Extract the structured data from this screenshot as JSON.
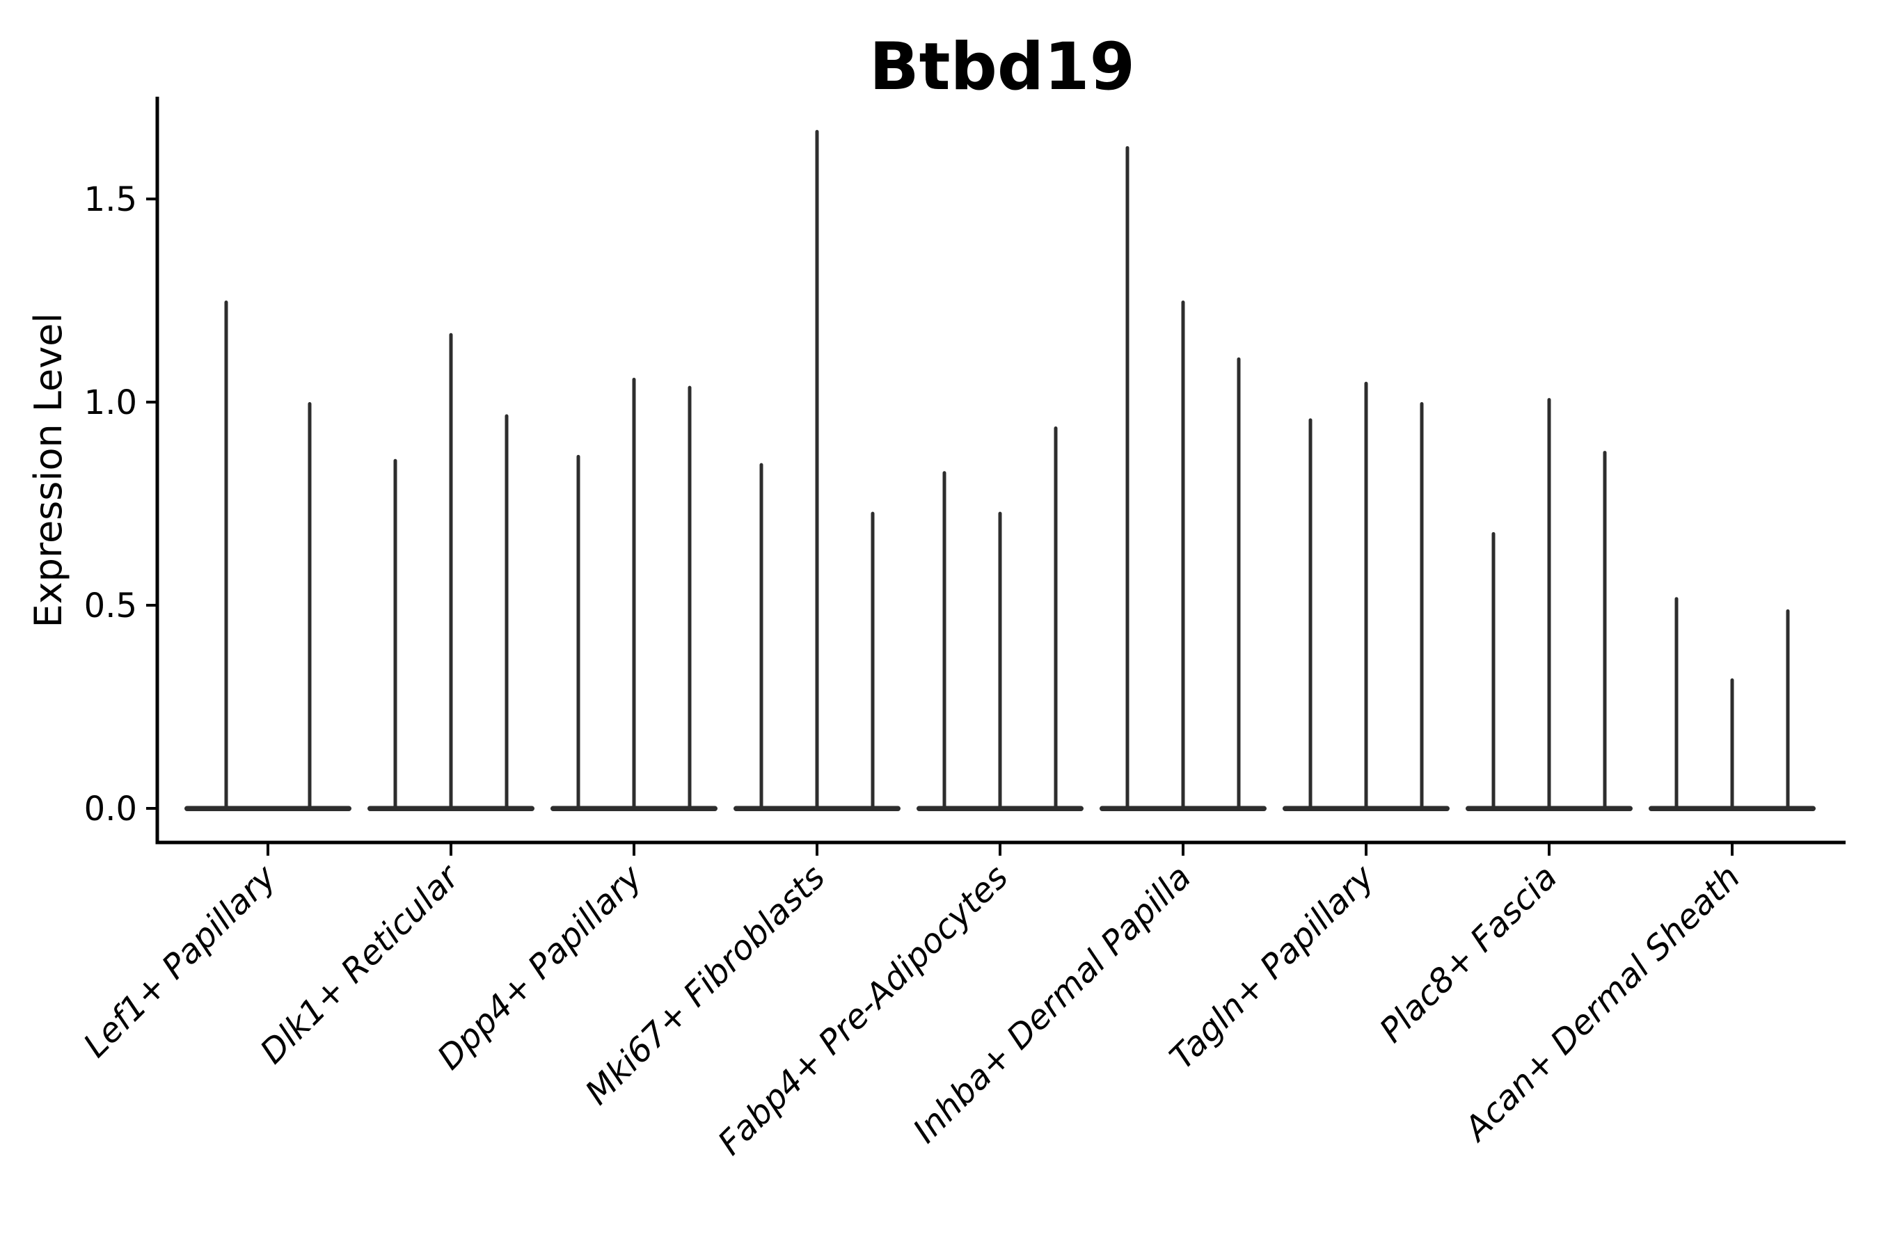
{
  "chart_data": {
    "type": "violin",
    "title": "Btbd19",
    "ylabel": "Expression Level",
    "xlabel": "",
    "ylim": [
      -0.08,
      1.76
    ],
    "grid": false,
    "legend": "none",
    "yticks": {
      "values": [
        0.0,
        0.5,
        1.0,
        1.5
      ],
      "labels": [
        "0.0",
        "0.5",
        "1.0",
        "1.5"
      ]
    },
    "colors": {
      "violin": "#2d2d2d",
      "axis": "#000000",
      "text": "#000000",
      "background": "#ffffff"
    },
    "categories": [
      {
        "label": "Lef1+ Papillary",
        "violin_max_values": [
          1.25,
          1.0
        ]
      },
      {
        "label": "Dlk1+ Reticular",
        "violin_max_values": [
          0.86,
          1.17,
          0.97
        ]
      },
      {
        "label": "Dpp4+ Papillary",
        "violin_max_values": [
          0.87,
          1.06,
          1.04
        ]
      },
      {
        "label": "Mki67+ Fibroblasts",
        "violin_max_values": [
          0.85,
          1.67,
          0.73
        ]
      },
      {
        "label": "Fabp4+ Pre-Adipocytes",
        "violin_max_values": [
          0.83,
          0.73,
          0.94
        ]
      },
      {
        "label": "Inhba+ Dermal Papilla",
        "violin_max_values": [
          1.63,
          1.25,
          1.11
        ]
      },
      {
        "label": "Tagln+ Papillary",
        "violin_max_values": [
          0.96,
          1.05,
          1.0
        ]
      },
      {
        "label": "Plac8+ Fascia",
        "violin_max_values": [
          0.68,
          1.01,
          0.88
        ]
      },
      {
        "label": "Acan+ Dermal Sheath",
        "violin_max_values": [
          0.52,
          0.32,
          0.49
        ]
      }
    ]
  }
}
